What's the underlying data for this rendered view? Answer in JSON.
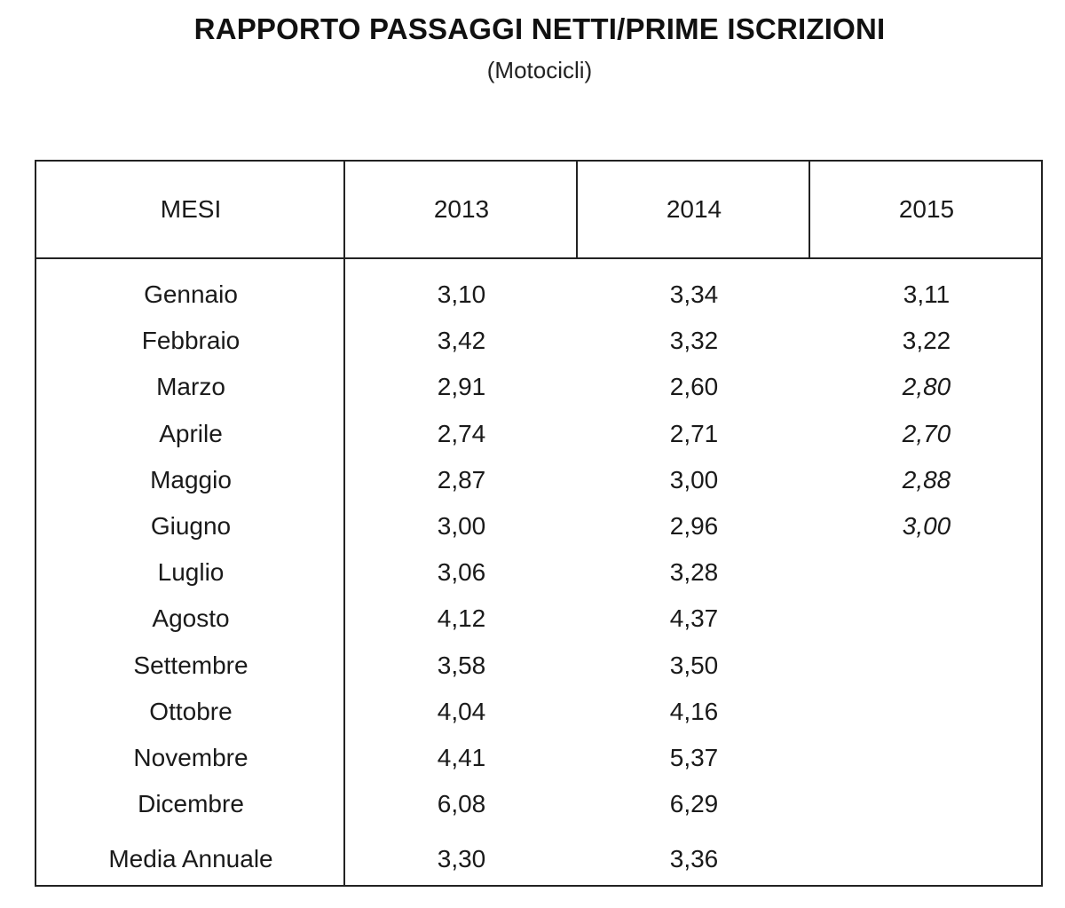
{
  "title": "RAPPORTO PASSAGGI NETTI/PRIME ISCRIZIONI",
  "subtitle": "(Motocicli)",
  "table": {
    "headers": [
      "MESI",
      "2013",
      "2014",
      "2015"
    ],
    "rows": [
      {
        "month": "Gennaio",
        "y2013": "3,10",
        "y2014": "3,34",
        "y2015": "3,11",
        "y2015_italic": false
      },
      {
        "month": "Febbraio",
        "y2013": "3,42",
        "y2014": "3,32",
        "y2015": "3,22",
        "y2015_italic": false
      },
      {
        "month": "Marzo",
        "y2013": "2,91",
        "y2014": "2,60",
        "y2015": "2,80",
        "y2015_italic": true
      },
      {
        "month": "Aprile",
        "y2013": "2,74",
        "y2014": "2,71",
        "y2015": "2,70",
        "y2015_italic": true
      },
      {
        "month": "Maggio",
        "y2013": "2,87",
        "y2014": "3,00",
        "y2015": "2,88",
        "y2015_italic": true
      },
      {
        "month": "Giugno",
        "y2013": "3,00",
        "y2014": "2,96",
        "y2015": "3,00",
        "y2015_italic": true
      },
      {
        "month": "Luglio",
        "y2013": "3,06",
        "y2014": "3,28",
        "y2015": "",
        "y2015_italic": false
      },
      {
        "month": "Agosto",
        "y2013": "4,12",
        "y2014": "4,37",
        "y2015": "",
        "y2015_italic": false
      },
      {
        "month": "Settembre",
        "y2013": "3,58",
        "y2014": "3,50",
        "y2015": "",
        "y2015_italic": false
      },
      {
        "month": "Ottobre",
        "y2013": "4,04",
        "y2014": "4,16",
        "y2015": "",
        "y2015_italic": false
      },
      {
        "month": "Novembre",
        "y2013": "4,41",
        "y2014": "5,37",
        "y2015": "",
        "y2015_italic": false
      },
      {
        "month": "Dicembre",
        "y2013": "6,08",
        "y2014": "6,29",
        "y2015": "",
        "y2015_italic": false
      },
      {
        "month": "Media Annuale",
        "y2013": "3,30",
        "y2014": "3,36",
        "y2015": "",
        "y2015_italic": false
      }
    ]
  }
}
